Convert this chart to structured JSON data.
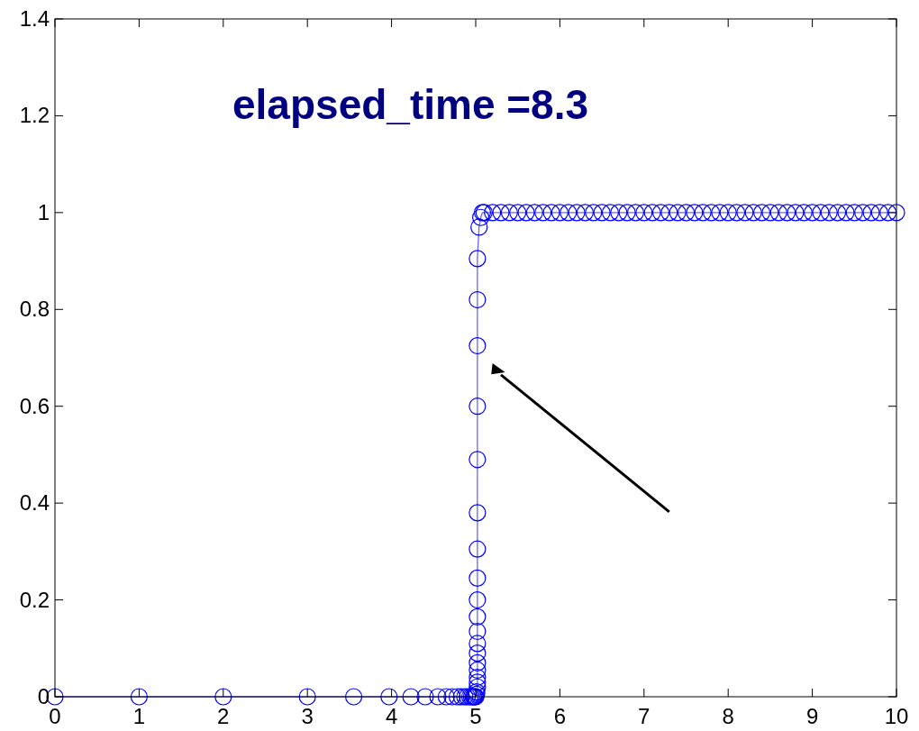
{
  "chart_data": {
    "type": "line",
    "marker": "circle",
    "line_style": "solid",
    "grid": false,
    "annotations": [
      "elapsed_time =8.3"
    ],
    "xlim": [
      0,
      10
    ],
    "xticks": [
      0,
      1,
      2,
      3,
      4,
      5,
      6,
      7,
      8,
      9,
      10
    ],
    "ylim": [
      0,
      1.4
    ],
    "yticks": [
      0,
      0.2,
      0.4,
      0.6,
      0.8,
      1,
      1.2,
      1.4
    ],
    "series": [
      {
        "color": "#0000ff",
        "x": [
          0,
          1,
          2,
          3,
          3.55,
          3.97,
          4.23,
          4.4,
          4.55,
          4.65,
          4.72,
          4.78,
          4.83,
          4.87,
          4.9,
          4.93,
          4.95,
          4.97,
          4.98,
          4.99,
          5,
          5.01,
          5.01,
          5.02,
          5.02,
          5.02,
          5.02,
          5.02,
          5.02,
          5.02,
          5.02,
          5.02,
          5.02,
          5.02,
          5.02,
          5.02,
          5.02,
          5.02,
          5.02,
          5.02,
          5.02,
          5.04,
          5.06,
          5.08,
          5.1,
          5.2,
          5.3,
          5.4,
          5.5,
          5.6,
          5.7,
          5.8,
          5.9,
          6,
          6.1,
          6.2,
          6.3,
          6.4,
          6.5,
          6.6,
          6.7,
          6.8,
          6.9,
          7,
          7.1,
          7.2,
          7.3,
          7.4,
          7.5,
          7.6,
          7.7,
          7.8,
          7.9,
          8,
          8.1,
          8.2,
          8.3,
          8.4,
          8.5,
          8.6,
          8.7,
          8.8,
          8.9,
          9,
          9.1,
          9.2,
          9.3,
          9.4,
          9.5,
          9.6,
          9.7,
          9.8,
          9.9,
          10
        ],
        "values": [
          0,
          0,
          0,
          0,
          0,
          0,
          0,
          0,
          0,
          0,
          0,
          0,
          0,
          0,
          0,
          0,
          0,
          0,
          0,
          0,
          0,
          0.005,
          0.01,
          0.02,
          0.03,
          0.04,
          0.055,
          0.07,
          0.09,
          0.11,
          0.135,
          0.165,
          0.2,
          0.245,
          0.305,
          0.38,
          0.49,
          0.6,
          0.725,
          0.82,
          0.905,
          0.97,
          0.99,
          1,
          1,
          1,
          1,
          1,
          1,
          1,
          1,
          1,
          1,
          1,
          1,
          1,
          1,
          1,
          1,
          1,
          1,
          1,
          1,
          1,
          1,
          1,
          1,
          1,
          1,
          1,
          1,
          1,
          1,
          1,
          1,
          1,
          1,
          1,
          1,
          1,
          1,
          1,
          1,
          1,
          1,
          1,
          1,
          1,
          1,
          1,
          1,
          1,
          1,
          1
        ]
      }
    ]
  }
}
